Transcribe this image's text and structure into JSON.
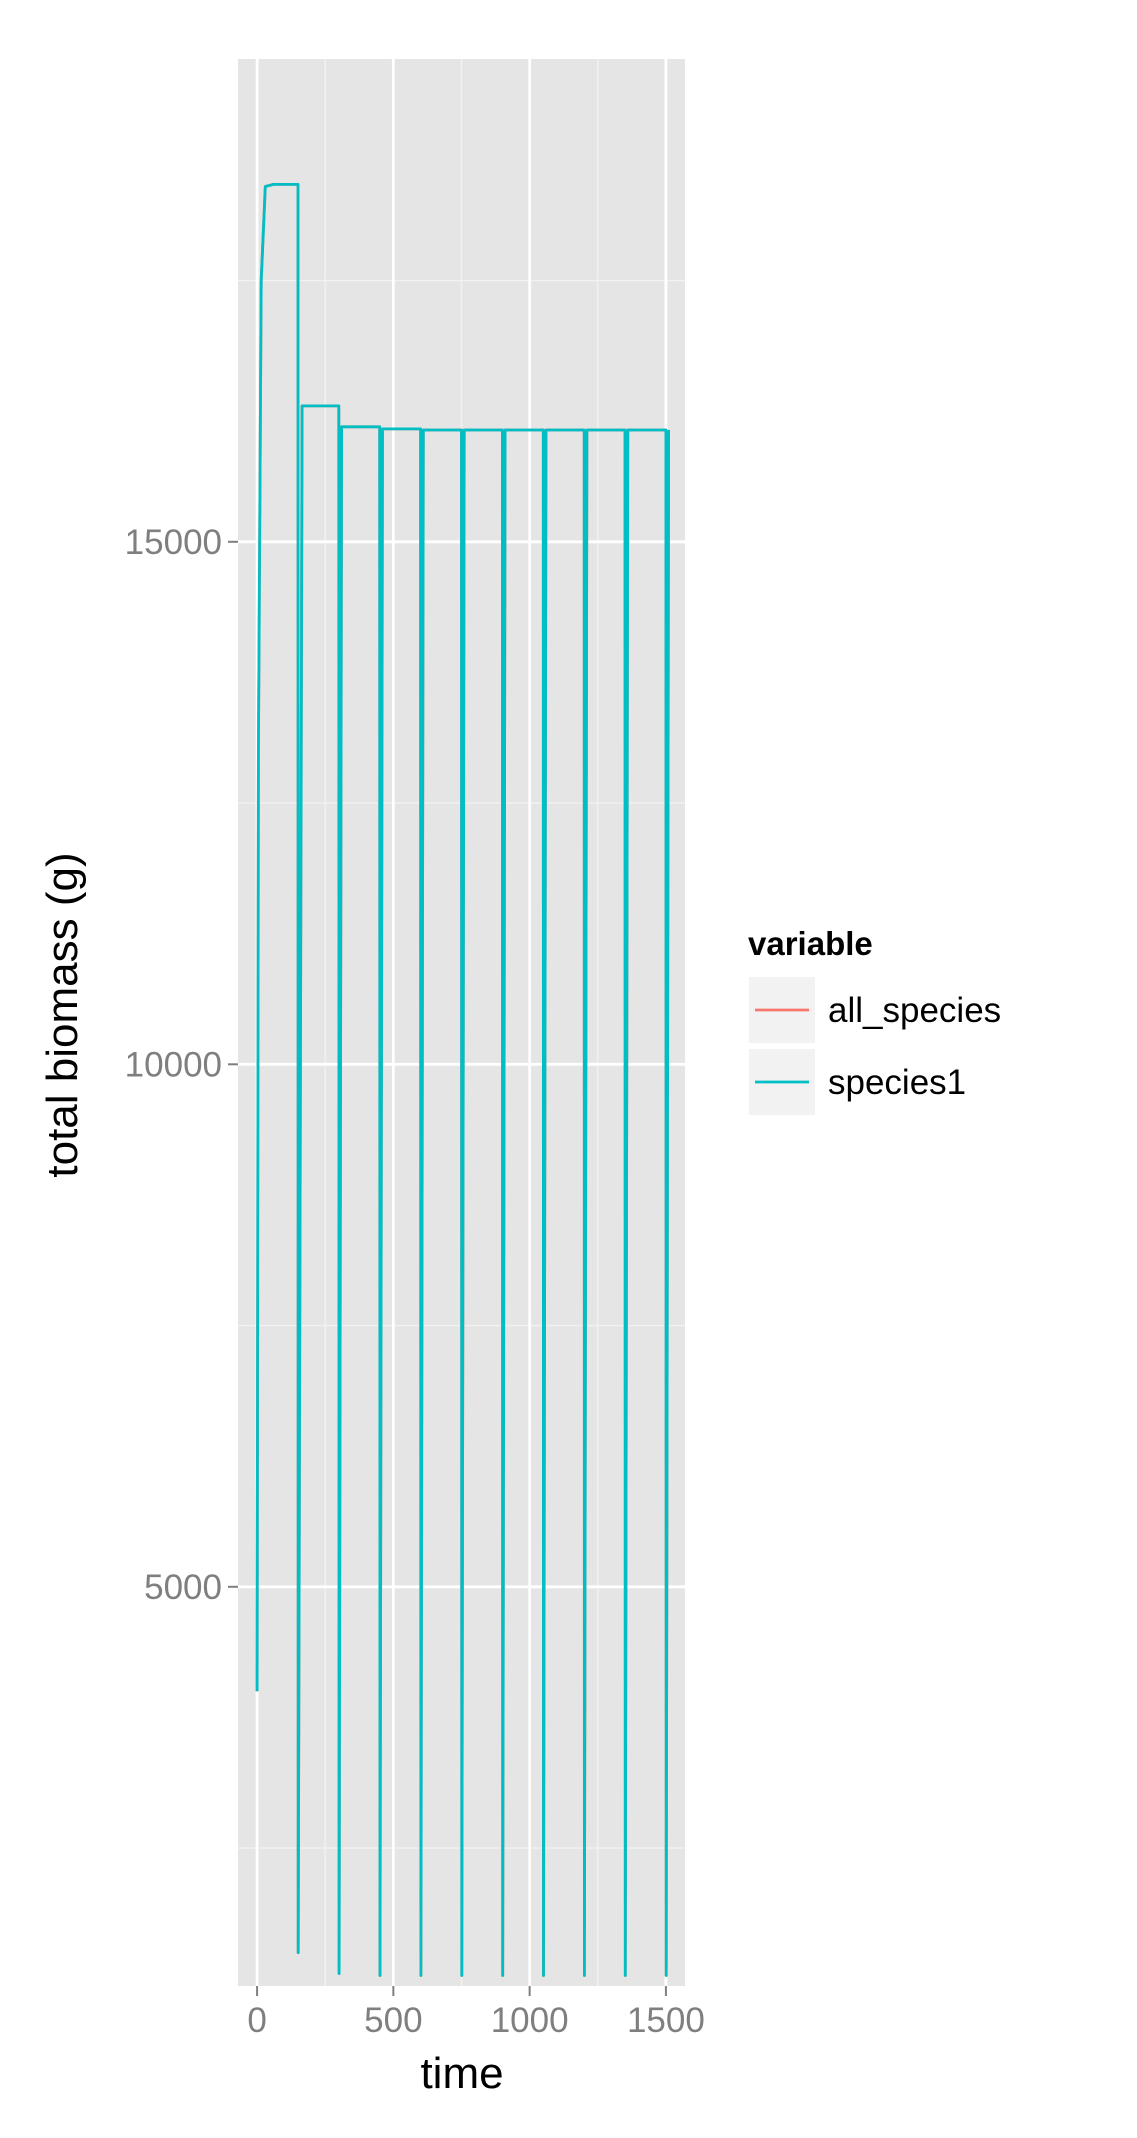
{
  "chart_data": {
    "type": "line",
    "title": "",
    "xlabel": "time",
    "ylabel": "total biomass (g)",
    "xlim": [
      -70,
      1570
    ],
    "ylim": [
      1180,
      19620
    ],
    "x_ticks": [
      0,
      500,
      1000,
      1500
    ],
    "x_tick_labels": [
      "0",
      "500",
      "1000",
      "1500"
    ],
    "y_ticks": [
      5000,
      10000,
      15000
    ],
    "y_tick_labels": [
      "5000",
      "10000",
      "15000"
    ],
    "grid": true,
    "legend": {
      "title": "variable",
      "position": "right",
      "entries": [
        {
          "name": "all_species",
          "color": "#F8766D"
        },
        {
          "name": "species1",
          "color": "#00BFC4"
        }
      ]
    },
    "series": [
      {
        "name": "all_species",
        "color": "#F8766D",
        "x": [
          0,
          5,
          15,
          30,
          60,
          150,
          151,
          165,
          300,
          301,
          310,
          450,
          451,
          460,
          600,
          601,
          610,
          750,
          751,
          760,
          900,
          901,
          910,
          1050,
          1051,
          1060,
          1200,
          1201,
          1210,
          1350,
          1351,
          1360,
          1500,
          1501,
          1510
        ],
        "values": [
          4000,
          13000,
          17500,
          18400,
          18420,
          18420,
          1500,
          16300,
          16300,
          1300,
          16100,
          16100,
          1280,
          16080,
          16080,
          1280,
          16070,
          16070,
          1280,
          16070,
          16070,
          1280,
          16070,
          16070,
          1280,
          16070,
          16070,
          1280,
          16070,
          16070,
          1280,
          16070,
          16070,
          1280,
          16070
        ]
      },
      {
        "name": "species1",
        "color": "#00BFC4",
        "x": [
          0,
          5,
          15,
          30,
          60,
          150,
          151,
          165,
          300,
          301,
          310,
          450,
          451,
          460,
          600,
          601,
          610,
          750,
          751,
          760,
          900,
          901,
          910,
          1050,
          1051,
          1060,
          1200,
          1201,
          1210,
          1350,
          1351,
          1360,
          1500,
          1501,
          1510
        ],
        "values": [
          4000,
          13000,
          17500,
          18400,
          18420,
          18420,
          1500,
          16300,
          16300,
          1300,
          16100,
          16100,
          1280,
          16080,
          16080,
          1280,
          16070,
          16070,
          1280,
          16070,
          16070,
          1280,
          16070,
          16070,
          1280,
          16070,
          16070,
          1280,
          16070,
          16070,
          1280,
          16070,
          16070,
          1280,
          16070
        ]
      }
    ]
  },
  "colors": {
    "panel_background": "#E5E5E5",
    "major_grid": "#FFFFFF",
    "minor_grid": "#F2F2F2",
    "tick_label": "#7F7F7F",
    "axis_title": "#000000",
    "legend_key_background": "#F2F2F2"
  }
}
